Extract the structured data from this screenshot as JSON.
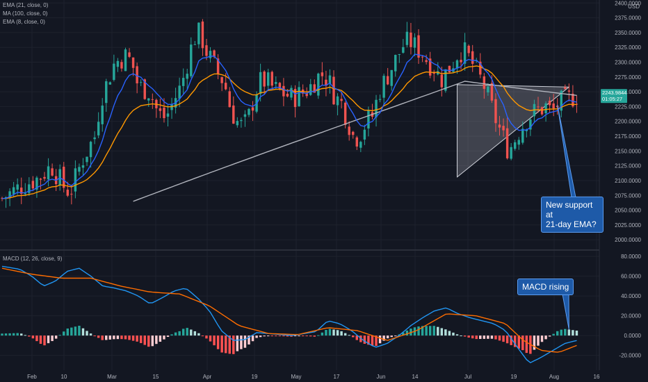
{
  "legend": {
    "ema21": "EMA (21, close, 0)",
    "ma100": "MA (100, close, 0)",
    "ema8": "EMA (8, close, 0)",
    "macd": "MACD (12, 26, close, 9)"
  },
  "colors": {
    "background": "#131722",
    "up": "#26a69a",
    "down": "#ef5350",
    "ema8": "#2962ff",
    "ema21": "#ff9800",
    "ma100": "#b2b5be",
    "macd_line": "#2196f3",
    "signal_line": "#ff6d00",
    "hist_pos_strong": "#26a69a",
    "hist_pos_weak": "#b2dfdb",
    "hist_neg_strong": "#ff5252",
    "hist_neg_weak": "#ffcdd2",
    "last_price_label": "#26a69a"
  },
  "price_axis": {
    "currency": "USD",
    "ticks": [
      "2400.0000",
      "2375.0000",
      "2350.0000",
      "2325.0000",
      "2300.0000",
      "2275.0000",
      "2250.0000",
      "2225.0000",
      "2200.0000",
      "2175.0000",
      "2150.0000",
      "2125.0000",
      "2100.0000",
      "2075.0000",
      "2050.0000",
      "2025.0000",
      "2000.0000"
    ],
    "last_price": "2243.9844",
    "countdown": "01:05:27"
  },
  "macd_axis": {
    "ticks": [
      "80.0000",
      "60.0000",
      "40.0000",
      "20.0000",
      "0.0000",
      "-20.0000"
    ]
  },
  "time_axis": {
    "ticks": [
      "Feb",
      "10",
      "Mar",
      "15",
      "Apr",
      "19",
      "May",
      "17",
      "Jun",
      "14",
      "Jul",
      "19",
      "Aug",
      "16"
    ]
  },
  "annotations": {
    "support": [
      "New support at",
      "21-day EMA?"
    ],
    "macd": "MACD rising"
  },
  "chart_data": {
    "type": "candlestick",
    "series_names": [
      "EMA (21, close, 0)",
      "MA (100, close, 0)",
      "EMA (8, close, 0)",
      "MACD (12, 26, close, 9)"
    ],
    "price_range": [
      1985,
      2405
    ],
    "macd_range": [
      -35,
      85
    ],
    "grid": true,
    "price_waypoints": [
      [
        0,
        2070
      ],
      [
        3,
        2090
      ],
      [
        6,
        2105
      ],
      [
        8,
        2125
      ],
      [
        10,
        2090
      ],
      [
        11,
        2080
      ],
      [
        13,
        2135
      ],
      [
        15,
        2175
      ],
      [
        16,
        2240
      ],
      [
        17,
        2265
      ],
      [
        18,
        2295
      ],
      [
        19,
        2305
      ],
      [
        20,
        2310
      ],
      [
        21,
        2300
      ],
      [
        22,
        2260
      ],
      [
        23,
        2255
      ],
      [
        24,
        2250
      ],
      [
        25,
        2220
      ],
      [
        26,
        2205
      ],
      [
        27,
        2215
      ],
      [
        28,
        2240
      ],
      [
        29,
        2260
      ],
      [
        30,
        2300
      ],
      [
        31,
        2340
      ],
      [
        32,
        2350
      ],
      [
        33,
        2320
      ],
      [
        34,
        2300
      ],
      [
        35,
        2280
      ],
      [
        36,
        2265
      ],
      [
        37,
        2220
      ],
      [
        38,
        2200
      ],
      [
        39,
        2190
      ],
      [
        40,
        2210
      ],
      [
        41,
        2250
      ],
      [
        42,
        2270
      ],
      [
        43,
        2265
      ],
      [
        44,
        2255
      ],
      [
        45,
        2250
      ],
      [
        46,
        2245
      ],
      [
        47,
        2240
      ],
      [
        48,
        2245
      ],
      [
        49,
        2250
      ],
      [
        50,
        2260
      ],
      [
        51,
        2275
      ],
      [
        52,
        2280
      ],
      [
        53,
        2265
      ],
      [
        54,
        2240
      ],
      [
        55,
        2230
      ],
      [
        56,
        2200
      ],
      [
        57,
        2170
      ],
      [
        58,
        2180
      ],
      [
        59,
        2200
      ],
      [
        60,
        2210
      ],
      [
        61,
        2250
      ],
      [
        62,
        2270
      ],
      [
        63,
        2290
      ],
      [
        64,
        2310
      ],
      [
        65,
        2330
      ],
      [
        66,
        2335
      ],
      [
        67,
        2325
      ],
      [
        68,
        2315
      ],
      [
        69,
        2300
      ],
      [
        70,
        2290
      ],
      [
        71,
        2270
      ],
      [
        72,
        2285
      ],
      [
        73,
        2300
      ],
      [
        74,
        2320
      ],
      [
        75,
        2315
      ],
      [
        76,
        2300
      ],
      [
        77,
        2280
      ],
      [
        78,
        2260
      ],
      [
        79,
        2230
      ],
      [
        80,
        2200
      ],
      [
        81,
        2175
      ],
      [
        82,
        2150
      ],
      [
        83,
        2170
      ],
      [
        84,
        2190
      ],
      [
        85,
        2205
      ],
      [
        86,
        2215
      ],
      [
        87,
        2220
      ],
      [
        88,
        2225
      ],
      [
        89,
        2215
      ],
      [
        90,
        2230
      ],
      [
        91,
        2235
      ],
      [
        92,
        2240
      ],
      [
        93,
        2244
      ]
    ],
    "macd_waypoints": [
      [
        0,
        70
      ],
      [
        3,
        67
      ],
      [
        5,
        60
      ],
      [
        7,
        50
      ],
      [
        9,
        55
      ],
      [
        11,
        65
      ],
      [
        13,
        68
      ],
      [
        15,
        60
      ],
      [
        17,
        50
      ],
      [
        19,
        48
      ],
      [
        21,
        45
      ],
      [
        23,
        40
      ],
      [
        25,
        32
      ],
      [
        27,
        38
      ],
      [
        29,
        45
      ],
      [
        31,
        48
      ],
      [
        33,
        38
      ],
      [
        35,
        25
      ],
      [
        37,
        5
      ],
      [
        39,
        -5
      ],
      [
        41,
        -4
      ],
      [
        43,
        3
      ],
      [
        45,
        2
      ],
      [
        47,
        1
      ],
      [
        49,
        0
      ],
      [
        51,
        2
      ],
      [
        53,
        4
      ],
      [
        55,
        15
      ],
      [
        57,
        12
      ],
      [
        59,
        5
      ],
      [
        61,
        -5
      ],
      [
        63,
        -12
      ],
      [
        65,
        -8
      ],
      [
        67,
        0
      ],
      [
        69,
        10
      ],
      [
        71,
        18
      ],
      [
        73,
        25
      ],
      [
        75,
        28
      ],
      [
        77,
        22
      ],
      [
        79,
        18
      ],
      [
        81,
        15
      ],
      [
        83,
        12
      ],
      [
        85,
        5
      ],
      [
        87,
        -12
      ],
      [
        89,
        -28
      ],
      [
        91,
        -22
      ],
      [
        93,
        -15
      ],
      [
        95,
        -8
      ],
      [
        97,
        -5
      ]
    ],
    "signal_waypoints": [
      [
        0,
        68
      ],
      [
        5,
        62
      ],
      [
        10,
        58
      ],
      [
        15,
        58
      ],
      [
        20,
        50
      ],
      [
        25,
        44
      ],
      [
        30,
        42
      ],
      [
        35,
        30
      ],
      [
        40,
        10
      ],
      [
        45,
        2
      ],
      [
        50,
        1
      ],
      [
        55,
        8
      ],
      [
        60,
        5
      ],
      [
        65,
        -5
      ],
      [
        70,
        5
      ],
      [
        75,
        22
      ],
      [
        80,
        20
      ],
      [
        85,
        12
      ],
      [
        88,
        -5
      ],
      [
        91,
        -15
      ],
      [
        94,
        -17
      ],
      [
        97,
        -10
      ]
    ]
  }
}
